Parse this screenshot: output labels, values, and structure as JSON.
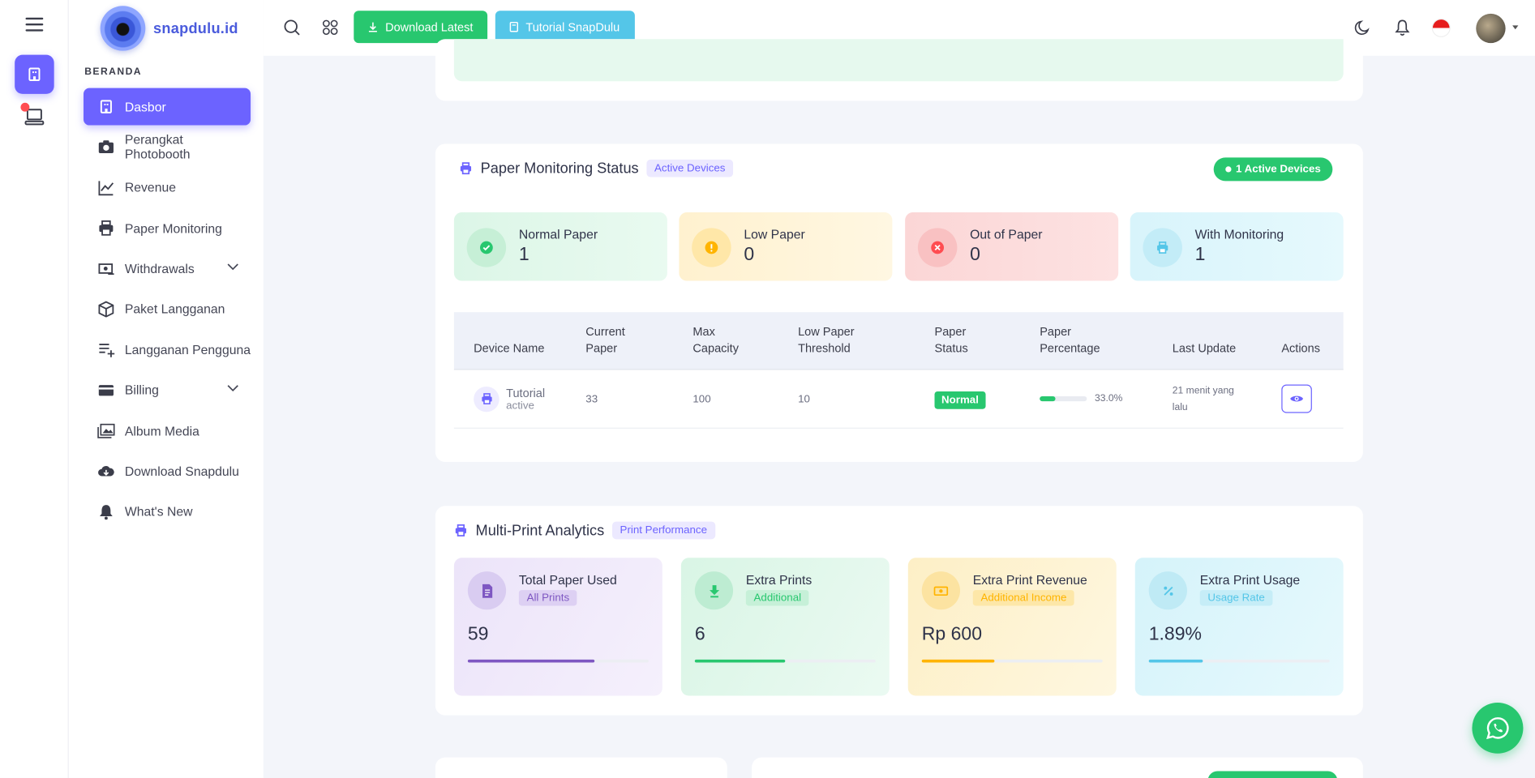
{
  "brand": {
    "name": "snapdulu.id"
  },
  "topbar": {
    "download_label": "Download Latest",
    "tutorial_label": "Tutorial SnapDulu"
  },
  "sidebar": {
    "section": "BERANDA",
    "items": [
      {
        "label": "Dasbor",
        "icon": "building-icon",
        "active": true
      },
      {
        "label": "Perangkat Photobooth",
        "icon": "camera-icon"
      },
      {
        "label": "Revenue",
        "icon": "chart-line-icon"
      },
      {
        "label": "Paper Monitoring",
        "icon": "printer-icon"
      },
      {
        "label": "Withdrawals",
        "icon": "cash-icon",
        "expandable": true
      },
      {
        "label": "Paket Langganan",
        "icon": "box-icon"
      },
      {
        "label": "Langganan Pengguna",
        "icon": "list-plus-icon"
      },
      {
        "label": "Billing",
        "icon": "card-icon",
        "expandable": true
      },
      {
        "label": "Album Media",
        "icon": "photos-icon"
      },
      {
        "label": "Download Snapdulu",
        "icon": "cloud-download-icon"
      },
      {
        "label": "What's New",
        "icon": "bell-icon"
      }
    ]
  },
  "paper_monitoring": {
    "title": "Paper Monitoring Status",
    "tag": "Active Devices",
    "badge": "1 Active Devices",
    "stats": [
      {
        "label": "Normal Paper",
        "value": "1",
        "icon": "check-circle-icon"
      },
      {
        "label": "Low Paper",
        "value": "0",
        "icon": "warning-circle-icon"
      },
      {
        "label": "Out of Paper",
        "value": "0",
        "icon": "x-circle-icon"
      },
      {
        "label": "With Monitoring",
        "value": "1",
        "icon": "printer-icon"
      }
    ],
    "table": {
      "headers": {
        "device": "Device Name",
        "current1": "Current",
        "current2": "Paper",
        "max1": "Max",
        "max2": "Capacity",
        "low1": "Low Paper",
        "low2": "Threshold",
        "status1": "Paper",
        "status2": "Status",
        "pct1": "Paper",
        "pct2": "Percentage",
        "update": "Last Update",
        "actions": "Actions"
      },
      "rows": [
        {
          "device_name": "Tutorial",
          "device_state": "active",
          "current": "33",
          "max": "100",
          "threshold": "10",
          "status": "Normal",
          "percentage_label": "33.0%",
          "percentage_value": 0.33,
          "update1": "21 menit yang",
          "update2": "lalu"
        }
      ]
    }
  },
  "multi_print": {
    "title": "Multi-Print Analytics",
    "tag": "Print Performance",
    "stats": [
      {
        "label": "Total Paper Used",
        "sub": "All Prints",
        "value": "59",
        "progress": 0.7,
        "color": "#7e57c2",
        "icon": "document-icon"
      },
      {
        "label": "Extra Prints",
        "sub": "Additional",
        "value": "6",
        "progress": 0.5,
        "color": "#28c76f",
        "icon": "download-arrow-icon"
      },
      {
        "label": "Extra Print Revenue",
        "sub": "Additional Income",
        "value": "Rp 600",
        "progress": 0.4,
        "color": "#ffb400",
        "icon": "money-icon"
      },
      {
        "label": "Extra Print Usage",
        "sub": "Usage Rate",
        "value": "1.89%",
        "progress": 0.3,
        "color": "#54c6e8",
        "icon": "percent-icon"
      }
    ]
  },
  "colors": {
    "primary": "#6c63ff",
    "success": "#28c76f",
    "info": "#54c6e8",
    "danger": "#ff4c51",
    "warning": "#ffb400"
  }
}
